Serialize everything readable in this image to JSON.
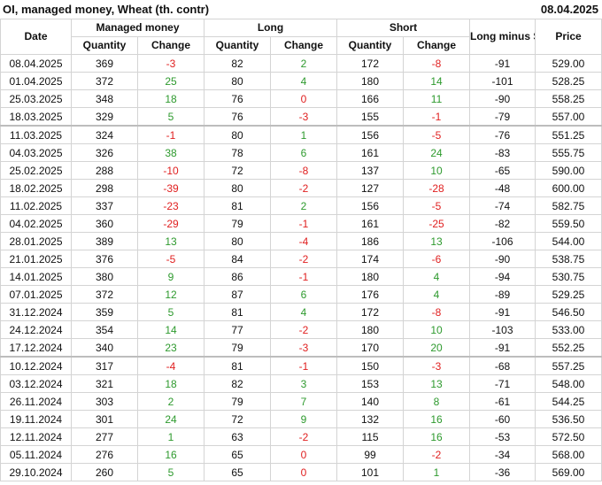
{
  "header": {
    "title": "OI, managed money, Wheat (th. contr)",
    "date": "08.04.2025"
  },
  "table": {
    "groups": [
      "Date",
      "Managed money",
      "Long",
      "Short",
      "Long minus Short",
      "Price"
    ],
    "subheaders": [
      "Quantity",
      "Change",
      "Quantity",
      "Change",
      "Quantity",
      "Change"
    ],
    "rows": [
      [
        "08.04.2025",
        "369",
        "-3",
        "82",
        "2",
        "172",
        "-8",
        "-91",
        "529.00"
      ],
      [
        "01.04.2025",
        "372",
        "25",
        "80",
        "4",
        "180",
        "14",
        "-101",
        "528.25"
      ],
      [
        "25.03.2025",
        "348",
        "18",
        "76",
        "0",
        "166",
        "11",
        "-90",
        "558.25"
      ],
      [
        "18.03.2025",
        "329",
        "5",
        "76",
        "-3",
        "155",
        "-1",
        "-79",
        "557.00"
      ],
      [
        "11.03.2025",
        "324",
        "-1",
        "80",
        "1",
        "156",
        "-5",
        "-76",
        "551.25"
      ],
      [
        "04.03.2025",
        "326",
        "38",
        "78",
        "6",
        "161",
        "24",
        "-83",
        "555.75"
      ],
      [
        "25.02.2025",
        "288",
        "-10",
        "72",
        "-8",
        "137",
        "10",
        "-65",
        "590.00"
      ],
      [
        "18.02.2025",
        "298",
        "-39",
        "80",
        "-2",
        "127",
        "-28",
        "-48",
        "600.00"
      ],
      [
        "11.02.2025",
        "337",
        "-23",
        "81",
        "2",
        "156",
        "-5",
        "-74",
        "582.75"
      ],
      [
        "04.02.2025",
        "360",
        "-29",
        "79",
        "-1",
        "161",
        "-25",
        "-82",
        "559.50"
      ],
      [
        "28.01.2025",
        "389",
        "13",
        "80",
        "-4",
        "186",
        "13",
        "-106",
        "544.00"
      ],
      [
        "21.01.2025",
        "376",
        "-5",
        "84",
        "-2",
        "174",
        "-6",
        "-90",
        "538.75"
      ],
      [
        "14.01.2025",
        "380",
        "9",
        "86",
        "-1",
        "180",
        "4",
        "-94",
        "530.75"
      ],
      [
        "07.01.2025",
        "372",
        "12",
        "87",
        "6",
        "176",
        "4",
        "-89",
        "529.25"
      ],
      [
        "31.12.2024",
        "359",
        "5",
        "81",
        "4",
        "172",
        "-8",
        "-91",
        "546.50"
      ],
      [
        "24.12.2024",
        "354",
        "14",
        "77",
        "-2",
        "180",
        "10",
        "-103",
        "533.00"
      ],
      [
        "17.12.2024",
        "340",
        "23",
        "79",
        "-3",
        "170",
        "20",
        "-91",
        "552.25"
      ],
      [
        "10.12.2024",
        "317",
        "-4",
        "81",
        "-1",
        "150",
        "-3",
        "-68",
        "557.25"
      ],
      [
        "03.12.2024",
        "321",
        "18",
        "82",
        "3",
        "153",
        "13",
        "-71",
        "548.00"
      ],
      [
        "26.11.2024",
        "303",
        "2",
        "79",
        "7",
        "140",
        "8",
        "-61",
        "544.25"
      ],
      [
        "19.11.2024",
        "301",
        "24",
        "72",
        "9",
        "132",
        "16",
        "-60",
        "536.50"
      ],
      [
        "12.11.2024",
        "277",
        "1",
        "63",
        "-2",
        "115",
        "16",
        "-53",
        "572.50"
      ],
      [
        "05.11.2024",
        "276",
        "16",
        "65",
        "0",
        "99",
        "-2",
        "-34",
        "568.00"
      ],
      [
        "29.10.2024",
        "260",
        "5",
        "65",
        "0",
        "101",
        "1",
        "-36",
        "569.00"
      ]
    ]
  }
}
